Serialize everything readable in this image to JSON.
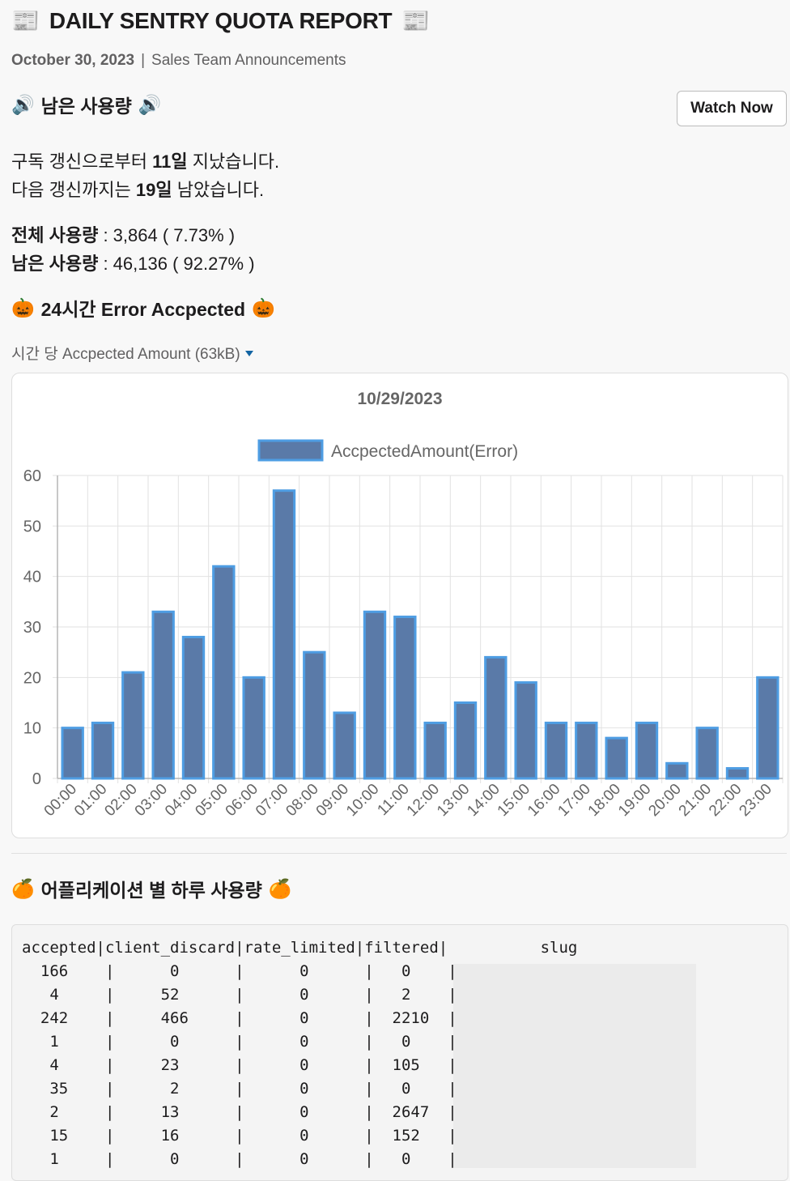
{
  "header": {
    "title": "DAILY SENTRY QUOTA REPORT",
    "title_emoji": "📰",
    "date": "October 30, 2023",
    "separator": "|",
    "channel": "Sales Team Announcements"
  },
  "remaining_section": {
    "heading": "남은 사용량",
    "heading_emoji": "🔊",
    "watch_button": "Watch Now",
    "line1_pre": "구독 갱신으로부터 ",
    "line1_bold": "11일",
    "line1_post": " 지났습니다.",
    "line2_pre": "다음 갱신까지는 ",
    "line2_bold": "19일",
    "line2_post": " 남았습니다.",
    "total_label": "전체 사용량",
    "total_value": " : 3,864 ( 7.73% )",
    "remain_label": "남은 사용량",
    "remain_value": " : 46,136 ( 92.27% )"
  },
  "error_section": {
    "heading": "24시간 Error Accpected",
    "heading_emoji": "🎃",
    "attachment_label": "시간 당 Accpected Amount (63kB)"
  },
  "chart_data": {
    "type": "bar",
    "title": "10/29/2023",
    "series": [
      {
        "name": "AccpectedAmount(Error)",
        "values": [
          10,
          11,
          21,
          33,
          28,
          42,
          20,
          57,
          25,
          13,
          33,
          32,
          11,
          15,
          24,
          19,
          11,
          11,
          8,
          11,
          3,
          10,
          2,
          20
        ]
      }
    ],
    "categories": [
      "00:00",
      "01:00",
      "02:00",
      "03:00",
      "04:00",
      "05:00",
      "06:00",
      "07:00",
      "08:00",
      "09:00",
      "10:00",
      "11:00",
      "12:00",
      "13:00",
      "14:00",
      "15:00",
      "16:00",
      "17:00",
      "18:00",
      "19:00",
      "20:00",
      "21:00",
      "22:00",
      "23:00"
    ],
    "ylim": [
      0,
      60
    ],
    "yticks": [
      0,
      10,
      20,
      30,
      40,
      50,
      60
    ],
    "grid": true,
    "legend": "top",
    "colors": {
      "fill": "#5a7aa8",
      "stroke": "#4e9de3"
    }
  },
  "app_section": {
    "heading": "어플리케이션 별 하루 사용량",
    "heading_emoji": "🍊",
    "table_header": "accepted|client_discard|rate_limited|filtered|          slug",
    "rows": [
      "  166    |      0      |      0      |   0    |",
      "   4     |     52      |      0      |   2    |",
      "  242    |     466     |      0      |  2210  |",
      "   1     |      0      |      0      |   0    |",
      "   4     |     23      |      0      |  105   |",
      "   35    |      2      |      0      |   0    |",
      "   2     |     13      |      0      |  2647  |",
      "   15    |     16      |      0      |  152   |",
      "   1     |      0      |      0      |   0    |"
    ]
  }
}
